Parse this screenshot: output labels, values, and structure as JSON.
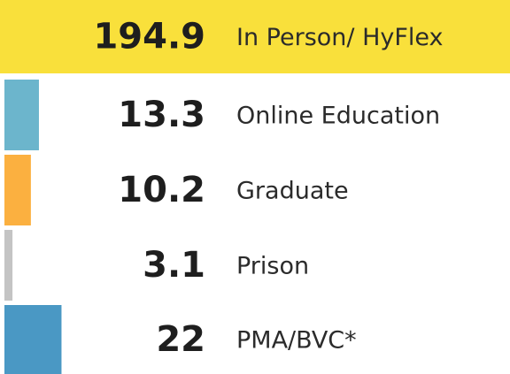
{
  "chart_data": {
    "type": "bar",
    "orientation": "horizontal",
    "categories": [
      "In Person/ HyFlex",
      "Online Education",
      "Graduate",
      "Prison",
      "PMA/BVC*"
    ],
    "values": [
      194.9,
      13.3,
      10.2,
      3.1,
      22
    ],
    "colors": [
      "#f9e03b",
      "#6cb5cc",
      "#fbb040",
      "#c4c4c4",
      "#4a98c4"
    ]
  }
}
